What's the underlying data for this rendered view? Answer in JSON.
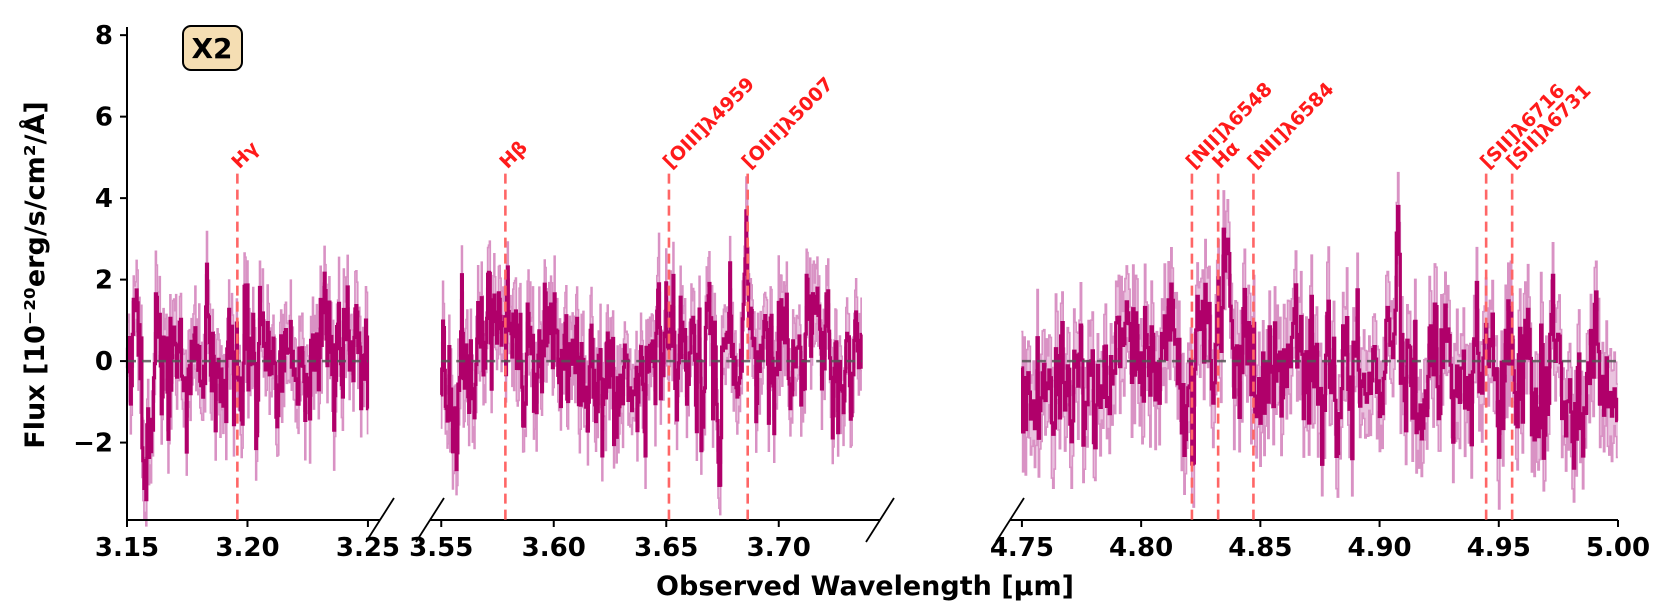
{
  "chart_data": {
    "type": "line",
    "title": "",
    "badge": "X2",
    "xlabel": "Observed Wavelength [μm]",
    "ylabel": "Flux [10⁻²⁰erg/s/cm²/Å]",
    "ylim": [
      -3.9,
      8.2
    ],
    "yticks": [
      -2,
      0,
      2,
      4,
      6,
      8
    ],
    "ytick_labels": [
      "−2",
      "0",
      "2",
      "4",
      "6",
      "8"
    ],
    "zero_line": 0,
    "colors": {
      "spectrum": "#b0006a",
      "error_band": "#d992c4",
      "emission_line": "#ff6666",
      "line_label": "#ff1a1a",
      "zero_line": "#555555",
      "badge_fill": "#f5deb3"
    },
    "panels": [
      {
        "xlim": [
          3.15,
          3.255
        ],
        "xticks": [
          3.15,
          3.2,
          3.25
        ],
        "xtick_labels": [
          "3.15",
          "3.20",
          "3.25"
        ],
        "data_range": [
          3.15,
          3.25
        ],
        "seed": 11,
        "features": [
          {
            "x": 3.158,
            "amp": -2.0,
            "w": 0.002
          },
          {
            "x": 3.155,
            "amp": 0.8,
            "w": 0.002
          },
          {
            "x": 3.233,
            "amp": 1.2,
            "w": 0.002
          }
        ]
      },
      {
        "xlim": [
          3.545,
          3.745
        ],
        "xticks": [
          3.55,
          3.6,
          3.65,
          3.7
        ],
        "xtick_labels": [
          "3.55",
          "3.60",
          "3.65",
          "3.70"
        ],
        "data_range": [
          3.55,
          3.737
        ],
        "seed": 23,
        "features": [
          {
            "x": 3.6858,
            "amp": 2.3,
            "w": 0.0012
          },
          {
            "x": 3.6505,
            "amp": 0.6,
            "w": 0.002
          },
          {
            "x": 3.63,
            "amp": -1.1,
            "w": 0.006
          }
        ]
      },
      {
        "xlim": [
          4.745,
          5.0
        ],
        "xticks": [
          4.75,
          4.8,
          4.85,
          4.9,
          4.95,
          5.0
        ],
        "xtick_labels": [
          "4.75",
          "4.80",
          "4.85",
          "4.90",
          "4.95",
          "5.00"
        ],
        "data_range": [
          4.75,
          5.0
        ],
        "seed": 37,
        "features": [
          {
            "x": 4.8365,
            "amp": 3.7,
            "w": 0.0011
          },
          {
            "x": 4.826,
            "amp": 1.3,
            "w": 0.004
          },
          {
            "x": 4.8205,
            "amp": -2.3,
            "w": 0.0015
          },
          {
            "x": 4.7765,
            "amp": -1.6,
            "w": 0.0015
          },
          {
            "x": 4.908,
            "amp": 2.6,
            "w": 0.0009
          },
          {
            "x": 4.982,
            "amp": -1.5,
            "w": 0.003
          },
          {
            "x": 4.965,
            "amp": -0.9,
            "w": 0.004
          }
        ]
      }
    ],
    "emission_lines": [
      {
        "label": "Hγ",
        "x": 3.1958,
        "panel": 0
      },
      {
        "label": "Hβ",
        "x": 3.5785,
        "panel": 1
      },
      {
        "label": "[OIII]λ4959",
        "x": 3.6512,
        "panel": 1
      },
      {
        "label": "[OIII]λ5007",
        "x": 3.6862,
        "panel": 1
      },
      {
        "label": "[NII]λ6548",
        "x": 4.8213,
        "panel": 2
      },
      {
        "label": "Hα",
        "x": 4.8323,
        "panel": 2
      },
      {
        "label": "[NII]λ6584",
        "x": 4.8471,
        "panel": 2
      },
      {
        "label": "[SII]λ6716",
        "x": 4.9447,
        "panel": 2
      },
      {
        "label": "[SII]λ6731",
        "x": 4.9556,
        "panel": 2
      }
    ]
  }
}
